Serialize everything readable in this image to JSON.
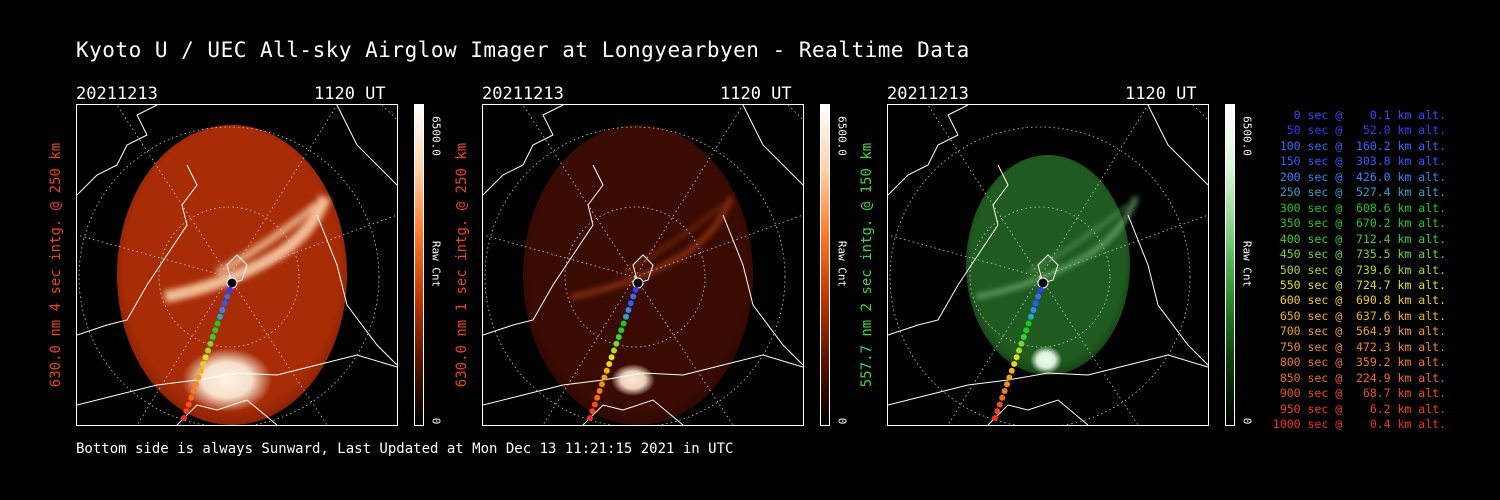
{
  "title": "Kyoto U / UEC All-sky Airglow Imager at Longyearbyen - Realtime Data",
  "footer": "Bottom side is always Sunward, Last Updated at Mon Dec 13 11:21:15 2021 in UTC",
  "panels": [
    {
      "date": "20211213",
      "time": "1120 UT",
      "side_label": "630.0 nm 4 sec intg. @ 250 km",
      "side_color": "#e8421e",
      "colorbar": {
        "max": "6500.0",
        "min": "0",
        "unit": "Raw Cnt",
        "gradient": [
          "#000000",
          "#5a1200",
          "#c43600",
          "#ff7a2a",
          "#ffd2a8",
          "#ffffff"
        ]
      },
      "theme": "red-bright"
    },
    {
      "date": "20211213",
      "time": "1120 UT",
      "side_label": "630.0 nm 1 sec intg. @ 250 km",
      "side_color": "#e8421e",
      "colorbar": {
        "max": "6500.0",
        "min": "0",
        "unit": "Raw Cnt",
        "gradient": [
          "#000000",
          "#5a1200",
          "#c43600",
          "#ff7a2a",
          "#ffd2a8",
          "#ffffff"
        ]
      },
      "theme": "red-dim"
    },
    {
      "date": "20211213",
      "time": "1120 UT",
      "side_label": "557.7 nm 2 sec intg. @ 150 km",
      "side_color": "#3ed63e",
      "colorbar": {
        "max": "6500.0",
        "min": "0",
        "unit": "Raw Cnt",
        "gradient": [
          "#000000",
          "#0d3d0d",
          "#2e8a2e",
          "#7fd07f",
          "#d8f5d8",
          "#ffffff"
        ]
      },
      "theme": "green"
    }
  ],
  "legend": [
    {
      "text": "  0 sec @    0.1 km alt.",
      "color": "#4444ff"
    },
    {
      "text": " 50 sec @   52.0 km alt.",
      "color": "#3a3aff"
    },
    {
      "text": "100 sec @  160.2 km alt.",
      "color": "#2f6cff"
    },
    {
      "text": "150 sec @  303.8 km alt.",
      "color": "#2a5cff"
    },
    {
      "text": "200 sec @  426.0 km alt.",
      "color": "#2f86ff"
    },
    {
      "text": "250 sec @  527.4 km alt.",
      "color": "#2aa6c8"
    },
    {
      "text": "300 sec @  608.6 km alt.",
      "color": "#1ec81e"
    },
    {
      "text": "350 sec @  670.2 km alt.",
      "color": "#22cc22"
    },
    {
      "text": "400 sec @  712.4 km alt.",
      "color": "#3ad03a"
    },
    {
      "text": "450 sec @  735.5 km alt.",
      "color": "#7ad82a"
    },
    {
      "text": "500 sec @  739.6 km alt.",
      "color": "#a8dc2a"
    },
    {
      "text": "550 sec @  724.7 km alt.",
      "color": "#e0e01e"
    },
    {
      "text": "600 sec @  690.8 km alt.",
      "color": "#f0d01e"
    },
    {
      "text": "650 sec @  637.6 km alt.",
      "color": "#f0b41e"
    },
    {
      "text": "700 sec @  564.9 km alt.",
      "color": "#f0a01e"
    },
    {
      "text": "750 sec @  472.3 km alt.",
      "color": "#f08c1e"
    },
    {
      "text": "800 sec @  359.2 km alt.",
      "color": "#f07a1e"
    },
    {
      "text": "850 sec @  224.9 km alt.",
      "color": "#f06a1e"
    },
    {
      "text": "900 sec @   68.7 km alt.",
      "color": "#f0501e"
    },
    {
      "text": "950 sec @    6.2 km alt.",
      "color": "#f0401e"
    },
    {
      "text": "1000 sec @    0.4 km alt.",
      "color": "#f0301e"
    }
  ]
}
